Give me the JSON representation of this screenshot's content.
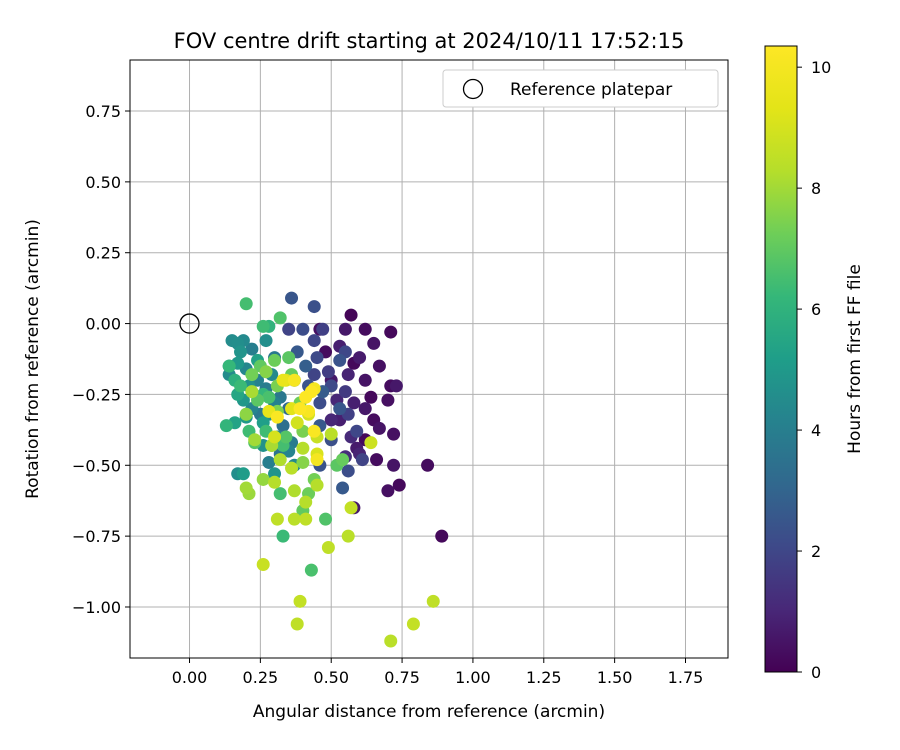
{
  "chart_data": {
    "type": "scatter",
    "title": "FOV centre drift starting at 2024/10/11 17:52:15",
    "xlabel": "Angular distance from reference (arcmin)",
    "ylabel": "Rotation from reference (arcmin)",
    "xlim": [
      -0.21,
      1.9
    ],
    "ylim": [
      -1.18,
      0.93
    ],
    "xticks": [
      "0.00",
      "0.25",
      "0.50",
      "0.75",
      "1.00",
      "1.25",
      "1.50",
      "1.75"
    ],
    "yticks": [
      "0.75",
      "0.50",
      "0.25",
      "0.00",
      "−0.25",
      "−0.50",
      "−0.75",
      "−1.00"
    ],
    "xtick_values": [
      0,
      0.25,
      0.5,
      0.75,
      1.0,
      1.25,
      1.5,
      1.75
    ],
    "ytick_values": [
      0.75,
      0.5,
      0.25,
      0,
      -0.25,
      -0.5,
      -0.75,
      -1.0
    ],
    "grid": true,
    "legend": {
      "placement": "upper-right",
      "entries": [
        {
          "label": "Reference platepar",
          "marker": "hollow-circle"
        }
      ]
    },
    "reference_point": {
      "x": 0.0,
      "y": 0.0
    },
    "colorbar": {
      "label": "Hours from first FF file",
      "range": [
        0,
        10.35
      ],
      "ticks": [
        "0",
        "2",
        "4",
        "6",
        "8",
        "10"
      ],
      "tick_values": [
        0,
        2,
        4,
        6,
        8,
        10
      ],
      "colormap": "viridis"
    },
    "points": [
      [
        0.57,
        0.03,
        0.1
      ],
      [
        0.62,
        -0.02,
        0.3
      ],
      [
        0.71,
        -0.03,
        0.2
      ],
      [
        0.55,
        -0.02,
        0.6
      ],
      [
        0.46,
        -0.02,
        0.4
      ],
      [
        0.53,
        -0.08,
        0.8
      ],
      [
        0.65,
        -0.07,
        0.5
      ],
      [
        0.48,
        -0.1,
        0.3
      ],
      [
        0.6,
        -0.12,
        0.7
      ],
      [
        0.58,
        -0.14,
        0.2
      ],
      [
        0.67,
        -0.15,
        0.4
      ],
      [
        0.56,
        -0.18,
        0.9
      ],
      [
        0.62,
        -0.2,
        0.5
      ],
      [
        0.71,
        -0.22,
        0.3
      ],
      [
        0.73,
        -0.22,
        0.6
      ],
      [
        0.64,
        -0.26,
        0.2
      ],
      [
        0.7,
        -0.27,
        0.4
      ],
      [
        0.58,
        -0.28,
        0.8
      ],
      [
        0.52,
        -0.27,
        1.0
      ],
      [
        0.62,
        -0.3,
        0.6
      ],
      [
        0.65,
        -0.34,
        0.3
      ],
      [
        0.67,
        -0.37,
        0.5
      ],
      [
        0.72,
        -0.39,
        0.4
      ],
      [
        0.62,
        -0.41,
        0.2
      ],
      [
        0.59,
        -0.44,
        0.7
      ],
      [
        0.66,
        -0.48,
        0.3
      ],
      [
        0.72,
        -0.5,
        0.5
      ],
      [
        0.74,
        -0.57,
        0.2
      ],
      [
        0.7,
        -0.59,
        0.4
      ],
      [
        0.58,
        -0.65,
        0.6
      ],
      [
        0.84,
        -0.5,
        0.3
      ],
      [
        0.89,
        -0.75,
        0.2
      ],
      [
        0.57,
        -0.4,
        1.1
      ],
      [
        0.6,
        -0.46,
        0.9
      ],
      [
        0.55,
        -0.47,
        1.2
      ],
      [
        0.53,
        -0.34,
        0.8
      ],
      [
        0.5,
        -0.34,
        1.0
      ],
      [
        0.5,
        -0.2,
        0.6
      ],
      [
        0.36,
        0.09,
        2.5
      ],
      [
        0.44,
        0.06,
        2.3
      ],
      [
        0.35,
        -0.02,
        1.9
      ],
      [
        0.4,
        -0.02,
        2.2
      ],
      [
        0.47,
        -0.02,
        1.8
      ],
      [
        0.44,
        -0.06,
        2.0
      ],
      [
        0.38,
        -0.1,
        2.6
      ],
      [
        0.45,
        -0.12,
        2.1
      ],
      [
        0.41,
        -0.15,
        2.8
      ],
      [
        0.55,
        -0.1,
        2.0
      ],
      [
        0.53,
        -0.13,
        2.4
      ],
      [
        0.49,
        -0.17,
        1.7
      ],
      [
        0.44,
        -0.18,
        1.9
      ],
      [
        0.37,
        -0.2,
        3.0
      ],
      [
        0.42,
        -0.22,
        2.4
      ],
      [
        0.47,
        -0.24,
        2.7
      ],
      [
        0.5,
        -0.22,
        2.1
      ],
      [
        0.55,
        -0.24,
        1.6
      ],
      [
        0.46,
        -0.28,
        2.2
      ],
      [
        0.53,
        -0.3,
        2.5
      ],
      [
        0.56,
        -0.32,
        1.8
      ],
      [
        0.46,
        -0.36,
        2.6
      ],
      [
        0.5,
        -0.41,
        2.3
      ],
      [
        0.59,
        -0.38,
        2.0
      ],
      [
        0.61,
        -0.48,
        1.9
      ],
      [
        0.56,
        -0.52,
        2.2
      ],
      [
        0.54,
        -0.58,
        2.6
      ],
      [
        0.46,
        -0.5,
        2.4
      ],
      [
        0.35,
        -0.3,
        3.2
      ],
      [
        0.33,
        -0.36,
        3.4
      ],
      [
        0.15,
        -0.06,
        4.5
      ],
      [
        0.17,
        -0.07,
        4.6
      ],
      [
        0.19,
        -0.06,
        4.4
      ],
      [
        0.14,
        -0.15,
        4.2
      ],
      [
        0.14,
        -0.18,
        4.5
      ],
      [
        0.18,
        -0.1,
        4.8
      ],
      [
        0.22,
        -0.09,
        4.0
      ],
      [
        0.17,
        -0.14,
        5.0
      ],
      [
        0.2,
        -0.16,
        4.3
      ],
      [
        0.21,
        -0.22,
        4.7
      ],
      [
        0.24,
        -0.2,
        4.1
      ],
      [
        0.27,
        -0.23,
        3.9
      ],
      [
        0.29,
        -0.18,
        4.4
      ],
      [
        0.3,
        -0.12,
        3.8
      ],
      [
        0.27,
        -0.06,
        4.6
      ],
      [
        0.19,
        -0.27,
        4.9
      ],
      [
        0.22,
        -0.3,
        4.2
      ],
      [
        0.25,
        -0.32,
        3.8
      ],
      [
        0.28,
        -0.32,
        4.5
      ],
      [
        0.3,
        -0.28,
        4.1
      ],
      [
        0.32,
        -0.26,
        3.7
      ],
      [
        0.31,
        -0.4,
        4.3
      ],
      [
        0.26,
        -0.43,
        4.7
      ],
      [
        0.28,
        -0.49,
        4.0
      ],
      [
        0.32,
        -0.46,
        3.6
      ],
      [
        0.35,
        -0.45,
        4.2
      ],
      [
        0.36,
        -0.42,
        3.9
      ],
      [
        0.37,
        -0.5,
        4.4
      ],
      [
        0.3,
        -0.53,
        4.8
      ],
      [
        0.26,
        -0.35,
        5.2
      ],
      [
        0.2,
        -0.33,
        5.0
      ],
      [
        0.17,
        -0.25,
        5.5
      ],
      [
        0.16,
        -0.35,
        5.4
      ],
      [
        0.19,
        -0.53,
        5.1
      ],
      [
        0.17,
        -0.53,
        4.6
      ],
      [
        0.24,
        -0.13,
        5.3
      ],
      [
        0.26,
        -0.01,
        6.4
      ],
      [
        0.28,
        -0.01,
        6.0
      ],
      [
        0.32,
        0.02,
        6.7
      ],
      [
        0.2,
        0.07,
        6.5
      ],
      [
        0.14,
        -0.15,
        6.2
      ],
      [
        0.16,
        -0.2,
        5.9
      ],
      [
        0.18,
        -0.22,
        6.3
      ],
      [
        0.13,
        -0.36,
        6.1
      ],
      [
        0.2,
        -0.32,
        6.6
      ],
      [
        0.21,
        -0.38,
        6.4
      ],
      [
        0.23,
        -0.42,
        6.8
      ],
      [
        0.24,
        -0.27,
        6.9
      ],
      [
        0.26,
        -0.25,
        6.2
      ],
      [
        0.28,
        -0.26,
        6.6
      ],
      [
        0.27,
        -0.38,
        6.4
      ],
      [
        0.29,
        -0.43,
        6.1
      ],
      [
        0.33,
        -0.43,
        6.5
      ],
      [
        0.34,
        -0.4,
        6.8
      ],
      [
        0.36,
        -0.18,
        7.1
      ],
      [
        0.35,
        -0.12,
        6.9
      ],
      [
        0.25,
        -0.15,
        7.0
      ],
      [
        0.22,
        -0.18,
        7.3
      ],
      [
        0.3,
        -0.13,
        7.2
      ],
      [
        0.32,
        -0.6,
        6.5
      ],
      [
        0.33,
        -0.75,
        6.3
      ],
      [
        0.43,
        -0.87,
        6.6
      ],
      [
        0.48,
        -0.69,
        6.7
      ],
      [
        0.4,
        -0.66,
        7.0
      ],
      [
        0.42,
        -0.6,
        7.2
      ],
      [
        0.4,
        -0.38,
        7.4
      ],
      [
        0.39,
        -0.28,
        7.2
      ],
      [
        0.4,
        -0.49,
        7.6
      ],
      [
        0.52,
        -0.5,
        6.9
      ],
      [
        0.54,
        -0.48,
        7.1
      ],
      [
        0.44,
        -0.55,
        7.3
      ],
      [
        0.31,
        -0.31,
        7.5
      ],
      [
        0.31,
        -0.22,
        7.4
      ],
      [
        0.27,
        -0.17,
        7.6
      ],
      [
        0.2,
        -0.32,
        7.7
      ],
      [
        0.26,
        -0.55,
        7.8
      ],
      [
        0.2,
        -0.58,
        8.0
      ],
      [
        0.21,
        -0.6,
        7.9
      ],
      [
        0.22,
        -0.24,
        8.1
      ],
      [
        0.23,
        -0.41,
        8.0
      ],
      [
        0.3,
        -0.56,
        8.3
      ],
      [
        0.29,
        -0.43,
        8.1
      ],
      [
        0.32,
        -0.48,
        8.2
      ],
      [
        0.36,
        -0.51,
        8.4
      ],
      [
        0.37,
        -0.59,
        8.2
      ],
      [
        0.41,
        -0.63,
        8.3
      ],
      [
        0.31,
        -0.69,
        8.5
      ],
      [
        0.37,
        -0.69,
        8.4
      ],
      [
        0.41,
        -0.69,
        8.5
      ],
      [
        0.45,
        -0.57,
        8.3
      ],
      [
        0.57,
        -0.65,
        8.6
      ],
      [
        0.56,
        -0.75,
        8.4
      ],
      [
        0.49,
        -0.79,
        8.5
      ],
      [
        0.26,
        -0.85,
        8.7
      ],
      [
        0.39,
        -0.98,
        8.6
      ],
      [
        0.38,
        -1.06,
        8.5
      ],
      [
        0.71,
        -1.12,
        8.4
      ],
      [
        0.79,
        -1.06,
        8.6
      ],
      [
        0.86,
        -0.98,
        8.5
      ],
      [
        0.64,
        -0.42,
        8.8
      ],
      [
        0.5,
        -0.39,
        8.4
      ],
      [
        0.45,
        -0.4,
        8.7
      ],
      [
        0.4,
        -0.44,
        8.3
      ],
      [
        0.38,
        -0.35,
        8.9
      ],
      [
        0.3,
        -0.4,
        9.0
      ],
      [
        0.34,
        -0.2,
        9.2
      ],
      [
        0.36,
        -0.3,
        9.3
      ],
      [
        0.42,
        -0.32,
        9.0
      ],
      [
        0.45,
        -0.46,
        9.1
      ],
      [
        0.28,
        -0.31,
        9.5
      ],
      [
        0.33,
        -0.2,
        9.6
      ],
      [
        0.37,
        -0.2,
        10.1
      ],
      [
        0.39,
        -0.3,
        10.3
      ],
      [
        0.31,
        -0.33,
        10.2
      ],
      [
        0.44,
        -0.23,
        10.0
      ],
      [
        0.41,
        -0.26,
        10.3
      ],
      [
        0.42,
        -0.31,
        10.1
      ],
      [
        0.44,
        -0.38,
        10.2
      ],
      [
        0.45,
        -0.48,
        10.0
      ],
      [
        0.43,
        -0.24,
        10.3
      ]
    ]
  }
}
